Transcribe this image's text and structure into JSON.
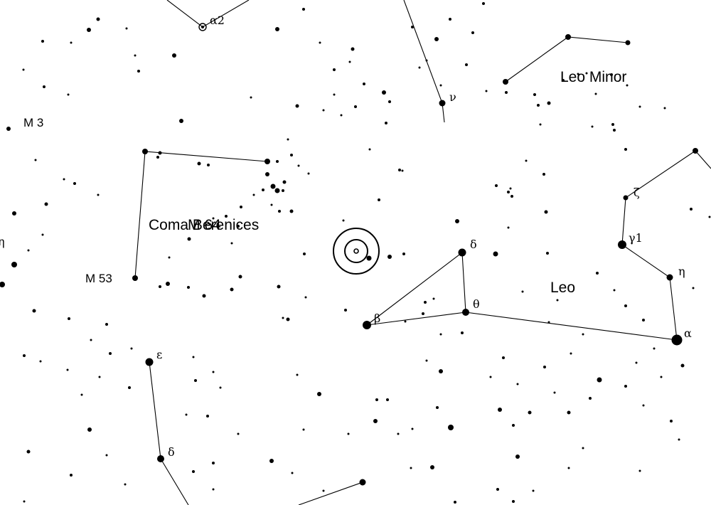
{
  "constellations": [
    {
      "name": "Leo Minor"
    },
    {
      "name": "Coma Berenices"
    },
    {
      "name": "Leo"
    }
  ],
  "deep_sky": [
    "M 3",
    "M 53",
    "M 64"
  ],
  "star_labels": {
    "alpha2": "α2",
    "nu": "ν",
    "zeta": "ζ",
    "gamma1": "γ1",
    "delta_leo": "δ",
    "eta_leo": "η",
    "theta_leo": "θ",
    "beta_leo": "β",
    "alpha_leo": "α",
    "epsilon_vir": "ε",
    "delta_vir": "δ",
    "eta_edge": "η"
  },
  "colors": {
    "background": "#ffffff",
    "ink": "#000000"
  },
  "marker": {
    "type": "target-rings"
  }
}
